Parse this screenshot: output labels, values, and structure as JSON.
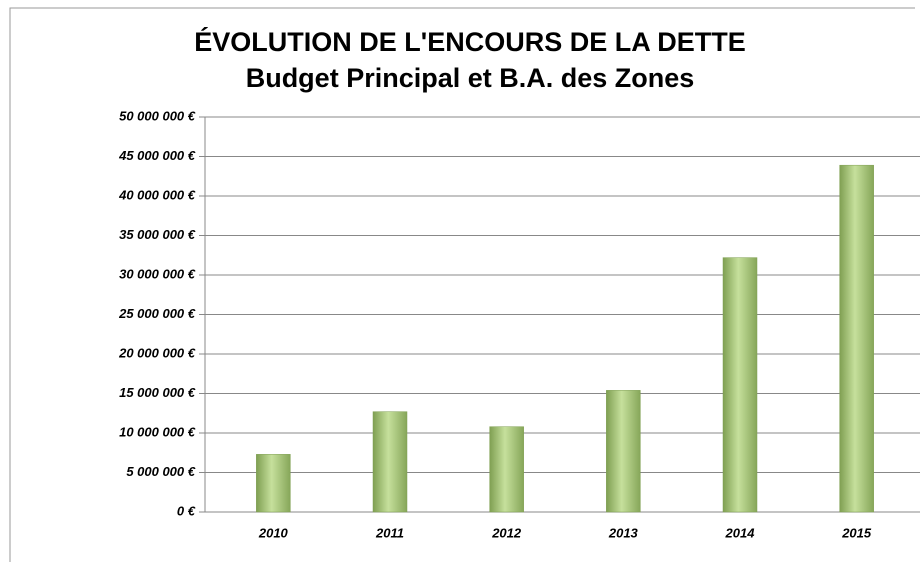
{
  "chart_data": {
    "type": "bar",
    "title": "ÉVOLUTION DE L'ENCOURS DE LA DETTE",
    "subtitle": "Budget Principal et B.A. des Zones",
    "categories": [
      "2010",
      "2011",
      "2012",
      "2013",
      "2014",
      "2015"
    ],
    "values": [
      7300000,
      12700000,
      10800000,
      15400000,
      32200000,
      43900000
    ],
    "color": "#a9c97a",
    "ylim": [
      0,
      50000000
    ],
    "yticks": [
      {
        "value": 0,
        "label": "0 €"
      },
      {
        "value": 5000000,
        "label": "5 000 000 €"
      },
      {
        "value": 10000000,
        "label": "10 000 000 €"
      },
      {
        "value": 15000000,
        "label": "15 000 000 €"
      },
      {
        "value": 20000000,
        "label": "20 000 000 €"
      },
      {
        "value": 25000000,
        "label": "25 000 000 €"
      },
      {
        "value": 30000000,
        "label": "30 000 000 €"
      },
      {
        "value": 35000000,
        "label": "35 000 000 €"
      },
      {
        "value": 40000000,
        "label": "40 000 000 €"
      },
      {
        "value": 45000000,
        "label": "45 000 000 €"
      },
      {
        "value": 50000000,
        "label": "50 000 000 €"
      }
    ],
    "grid": true
  }
}
